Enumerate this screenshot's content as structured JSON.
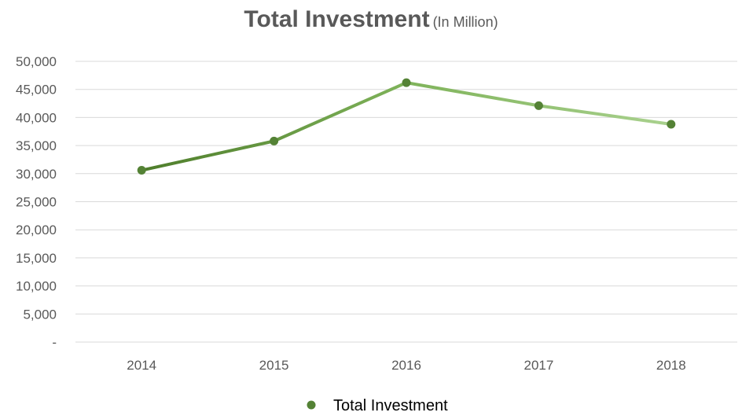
{
  "chart_data": {
    "type": "line",
    "title": "Total Investment",
    "subtitle": "(In Million)",
    "categories": [
      "2014",
      "2015",
      "2016",
      "2017",
      "2018"
    ],
    "series": [
      {
        "name": "Total Investment",
        "values": [
          30600,
          35800,
          46200,
          42100,
          38800
        ]
      }
    ],
    "ylim": [
      0,
      50000
    ],
    "yticks": [
      0,
      5000,
      10000,
      15000,
      20000,
      25000,
      30000,
      35000,
      40000,
      45000,
      50000
    ],
    "ytick_labels": [
      "-",
      "5,000",
      "10,000",
      "15,000",
      "20,000",
      "25,000",
      "30,000",
      "35,000",
      "40,000",
      "45,000",
      "50,000"
    ],
    "grid": true,
    "legend": "bottom",
    "colors": {
      "line_start": "#4e7d2b",
      "line_end": "#a9d18e",
      "marker": "#548235",
      "grid": "#d9d9d9"
    }
  }
}
